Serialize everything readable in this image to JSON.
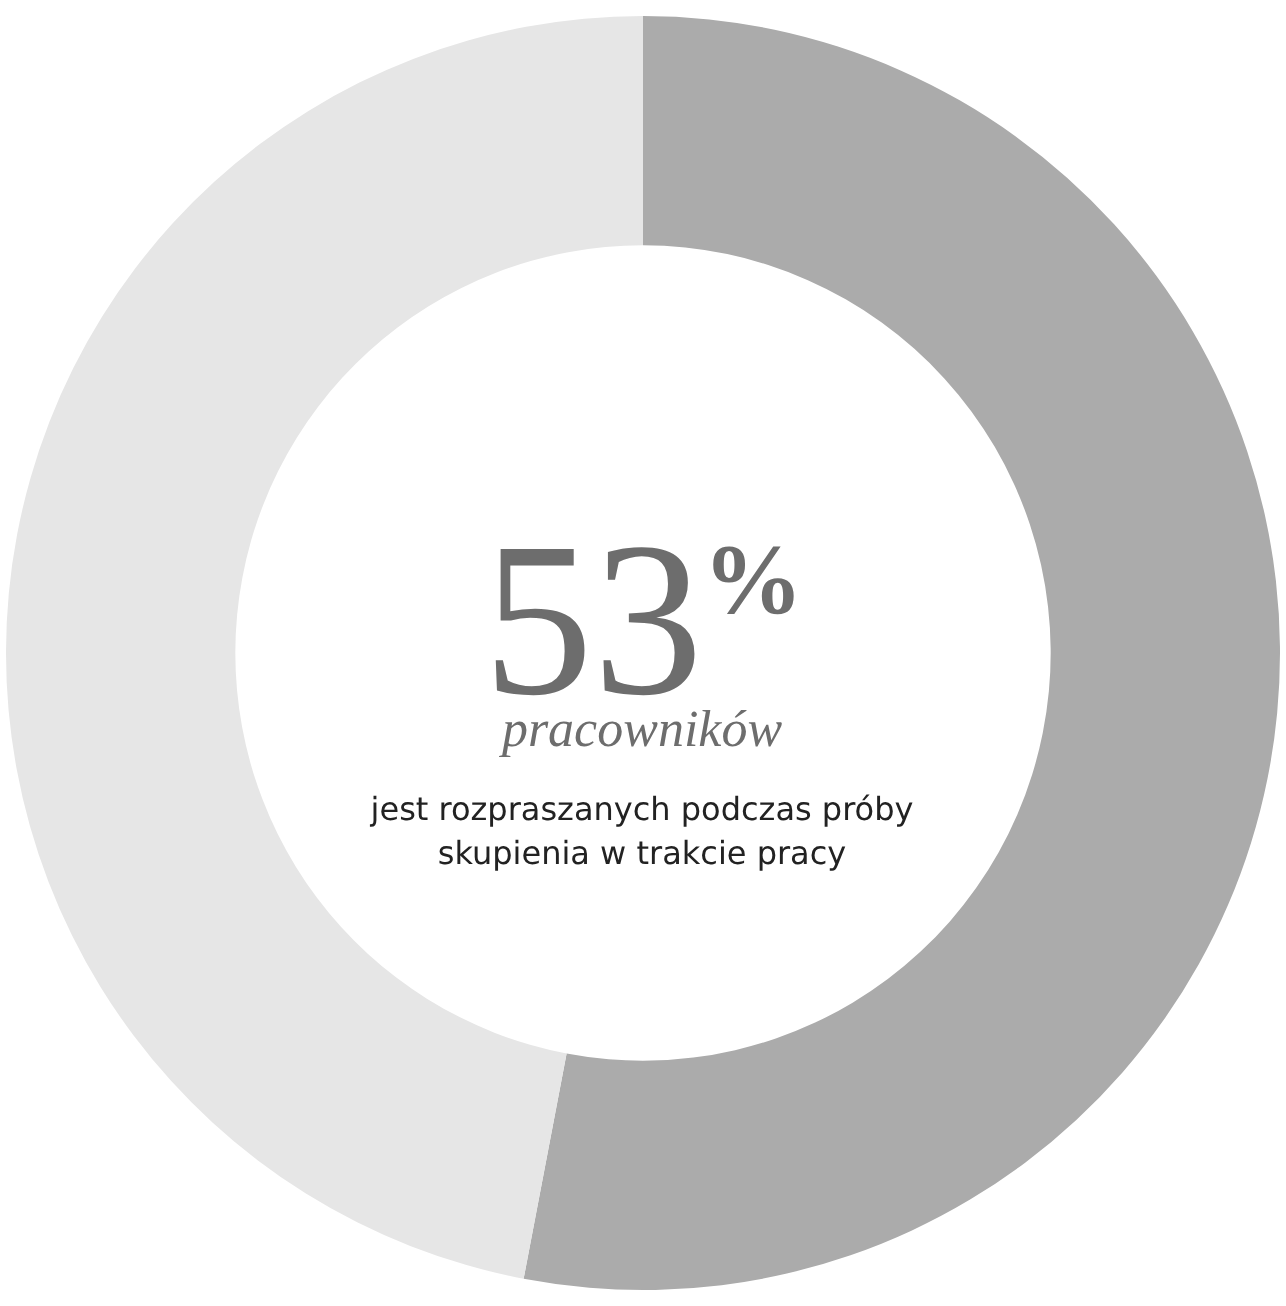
{
  "chart_data": {
    "type": "donut",
    "categories": [
      null,
      null
    ],
    "values": [
      53,
      47
    ],
    "colors": [
      "#ababab",
      "#e6e6e6"
    ],
    "value_labels": [
      "53$^{%}$",
      null
    ],
    "legend": false,
    "annotations": [
      "pracowników",
      "jest rozpraszanych podczas próby skupienia w trakcie pracy"
    ]
  }
}
